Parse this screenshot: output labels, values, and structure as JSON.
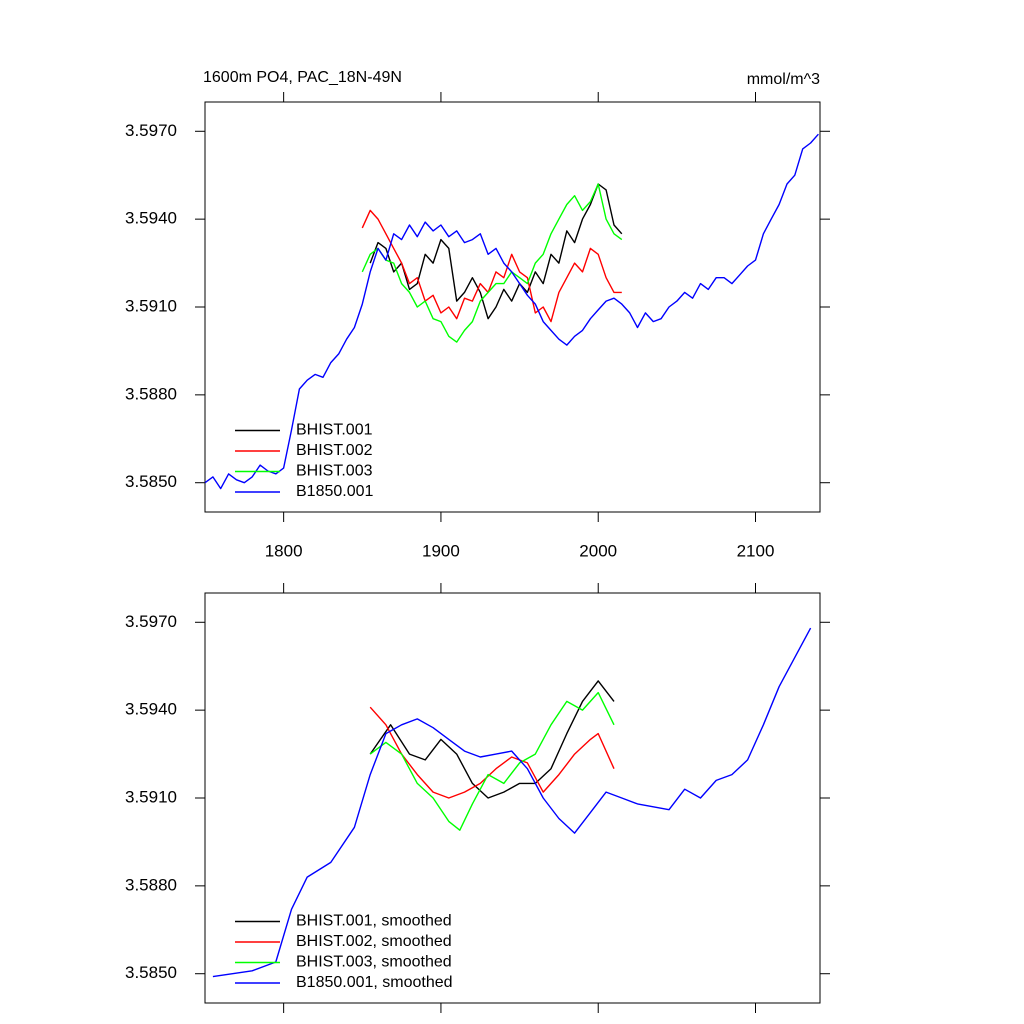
{
  "chart_data": [
    {
      "type": "line",
      "title": "1600m PO4, PAC_18N-49N",
      "units": "mmol/m^3",
      "xlim": [
        1750,
        2141
      ],
      "xticks": [
        1800,
        1900,
        2000,
        2100
      ],
      "ylim": [
        3.584,
        3.598
      ],
      "yticks": [
        {
          "value": 3.585,
          "label": "3.5850"
        },
        {
          "value": 3.588,
          "label": "3.5880"
        },
        {
          "value": 3.591,
          "label": "3.5910"
        },
        {
          "value": 3.594,
          "label": "3.5940"
        },
        {
          "value": 3.597,
          "label": "3.5970"
        }
      ],
      "legend": "lower left",
      "series": [
        {
          "name": "BHIST.001",
          "color": "#000000",
          "x": [
            1855,
            1860,
            1865,
            1870,
            1875,
            1880,
            1885,
            1890,
            1895,
            1900,
            1905,
            1910,
            1915,
            1920,
            1925,
            1930,
            1935,
            1940,
            1945,
            1950,
            1955,
            1960,
            1965,
            1970,
            1975,
            1980,
            1985,
            1990,
            1995,
            2000,
            2005,
            2010,
            2015
          ],
          "values": [
            3.5925,
            3.5932,
            3.593,
            3.5922,
            3.5925,
            3.5916,
            3.5918,
            3.5928,
            3.5925,
            3.5933,
            3.593,
            3.5912,
            3.5915,
            3.592,
            3.5915,
            3.5906,
            3.591,
            3.5916,
            3.5912,
            3.5918,
            3.5915,
            3.5922,
            3.5918,
            3.5928,
            3.5925,
            3.5936,
            3.5932,
            3.594,
            3.5945,
            3.5952,
            3.595,
            3.5938,
            3.5935
          ]
        },
        {
          "name": "BHIST.002",
          "color": "#ff0000",
          "x": [
            1850,
            1855,
            1860,
            1865,
            1870,
            1875,
            1880,
            1885,
            1890,
            1895,
            1900,
            1905,
            1910,
            1915,
            1920,
            1925,
            1930,
            1935,
            1940,
            1945,
            1950,
            1955,
            1960,
            1965,
            1970,
            1975,
            1980,
            1985,
            1990,
            1995,
            2000,
            2005,
            2010,
            2015
          ],
          "values": [
            3.5937,
            3.5943,
            3.594,
            3.5935,
            3.593,
            3.5925,
            3.5918,
            3.592,
            3.5912,
            3.5914,
            3.5908,
            3.591,
            3.5906,
            3.5913,
            3.5912,
            3.5918,
            3.5915,
            3.5922,
            3.592,
            3.5928,
            3.5922,
            3.592,
            3.5908,
            3.591,
            3.5905,
            3.5915,
            3.592,
            3.5925,
            3.5922,
            3.593,
            3.5928,
            3.592,
            3.5915,
            3.5915
          ]
        },
        {
          "name": "BHIST.003",
          "color": "#00ff00",
          "x": [
            1850,
            1855,
            1860,
            1865,
            1870,
            1875,
            1880,
            1885,
            1890,
            1895,
            1900,
            1905,
            1910,
            1915,
            1920,
            1925,
            1930,
            1935,
            1940,
            1945,
            1950,
            1955,
            1960,
            1965,
            1970,
            1975,
            1980,
            1985,
            1990,
            1995,
            2000,
            2005,
            2010,
            2015
          ],
          "values": [
            3.5922,
            3.5928,
            3.593,
            3.5926,
            3.5925,
            3.5918,
            3.5915,
            3.591,
            3.5912,
            3.5906,
            3.5905,
            3.59,
            3.5898,
            3.5902,
            3.5905,
            3.5912,
            3.5915,
            3.5918,
            3.5918,
            3.5922,
            3.592,
            3.5918,
            3.5925,
            3.5928,
            3.5935,
            3.594,
            3.5945,
            3.5948,
            3.5943,
            3.5946,
            3.5952,
            3.594,
            3.5935,
            3.5933
          ]
        },
        {
          "name": "B1850.001",
          "color": "#0000ff",
          "x": [
            1750,
            1755,
            1760,
            1765,
            1770,
            1775,
            1780,
            1785,
            1790,
            1795,
            1800,
            1805,
            1810,
            1815,
            1820,
            1825,
            1830,
            1835,
            1840,
            1845,
            1850,
            1855,
            1860,
            1865,
            1870,
            1875,
            1880,
            1885,
            1890,
            1895,
            1900,
            1905,
            1910,
            1915,
            1920,
            1925,
            1930,
            1935,
            1940,
            1945,
            1950,
            1955,
            1960,
            1965,
            1970,
            1975,
            1980,
            1985,
            1990,
            1995,
            2000,
            2005,
            2010,
            2015,
            2020,
            2025,
            2030,
            2035,
            2040,
            2045,
            2050,
            2055,
            2060,
            2065,
            2070,
            2075,
            2080,
            2085,
            2090,
            2095,
            2100,
            2105,
            2110,
            2115,
            2120,
            2125,
            2130,
            2135,
            2140
          ],
          "values": [
            3.585,
            3.5852,
            3.5848,
            3.5853,
            3.5851,
            3.585,
            3.5852,
            3.5856,
            3.5854,
            3.5853,
            3.5855,
            3.5868,
            3.5882,
            3.5885,
            3.5887,
            3.5886,
            3.5891,
            3.5894,
            3.5899,
            3.5903,
            3.5911,
            3.5922,
            3.593,
            3.5926,
            3.5935,
            3.5933,
            3.5938,
            3.5934,
            3.5939,
            3.5936,
            3.5938,
            3.5934,
            3.5936,
            3.5932,
            3.5933,
            3.5935,
            3.5928,
            3.593,
            3.5925,
            3.5922,
            3.5918,
            3.5914,
            3.5911,
            3.5905,
            3.5902,
            3.5899,
            3.5897,
            3.59,
            3.5902,
            3.5906,
            3.5909,
            3.5912,
            3.5913,
            3.5911,
            3.5908,
            3.5903,
            3.5908,
            3.5905,
            3.5906,
            3.591,
            3.5912,
            3.5915,
            3.5913,
            3.5918,
            3.5916,
            3.592,
            3.592,
            3.5918,
            3.5921,
            3.5924,
            3.5926,
            3.5935,
            3.594,
            3.5945,
            3.5952,
            3.5955,
            3.5964,
            3.5966,
            3.5969
          ]
        }
      ]
    },
    {
      "type": "line",
      "xlim": [
        1750,
        2141
      ],
      "xticks": [
        1800,
        1900,
        2000,
        2100
      ],
      "ylim": [
        3.584,
        3.598
      ],
      "yticks": [
        {
          "value": 3.585,
          "label": "3.5850"
        },
        {
          "value": 3.588,
          "label": "3.5880"
        },
        {
          "value": 3.591,
          "label": "3.5910"
        },
        {
          "value": 3.594,
          "label": "3.5940"
        },
        {
          "value": 3.597,
          "label": "3.5970"
        }
      ],
      "legend": "lower left",
      "series": [
        {
          "name": "BHIST.001, smoothed",
          "color": "#000000",
          "x": [
            1855,
            1868,
            1880,
            1890,
            1900,
            1910,
            1920,
            1930,
            1940,
            1950,
            1960,
            1970,
            1980,
            1990,
            2000,
            2010
          ],
          "values": [
            3.5925,
            3.5935,
            3.5925,
            3.5923,
            3.593,
            3.5925,
            3.5915,
            3.591,
            3.5912,
            3.5915,
            3.5915,
            3.592,
            3.5932,
            3.5943,
            3.595,
            3.5943
          ]
        },
        {
          "name": "BHIST.002, smoothed",
          "color": "#ff0000",
          "x": [
            1855,
            1865,
            1875,
            1885,
            1895,
            1905,
            1915,
            1925,
            1935,
            1945,
            1955,
            1965,
            1975,
            1985,
            1995,
            2000,
            2010
          ],
          "values": [
            3.5941,
            3.5935,
            3.5925,
            3.5918,
            3.5912,
            3.591,
            3.5912,
            3.5915,
            3.592,
            3.5924,
            3.5922,
            3.5912,
            3.5918,
            3.5925,
            3.593,
            3.5932,
            3.592
          ]
        },
        {
          "name": "BHIST.003, smoothed",
          "color": "#00ff00",
          "x": [
            1855,
            1865,
            1875,
            1885,
            1895,
            1905,
            1912,
            1920,
            1930,
            1940,
            1950,
            1960,
            1970,
            1980,
            1990,
            2000,
            2010
          ],
          "values": [
            3.5925,
            3.5929,
            3.5925,
            3.5915,
            3.591,
            3.5902,
            3.5899,
            3.5908,
            3.5918,
            3.5915,
            3.5922,
            3.5925,
            3.5935,
            3.5943,
            3.594,
            3.5946,
            3.5935
          ]
        },
        {
          "name": "B1850.001, smoothed",
          "color": "#0000ff",
          "x": [
            1755,
            1780,
            1795,
            1805,
            1815,
            1830,
            1845,
            1855,
            1865,
            1875,
            1885,
            1895,
            1905,
            1915,
            1925,
            1935,
            1945,
            1955,
            1965,
            1975,
            1985,
            1995,
            2005,
            2015,
            2025,
            2035,
            2045,
            2055,
            2065,
            2075,
            2085,
            2095,
            2105,
            2115,
            2125,
            2135
          ],
          "values": [
            3.5849,
            3.5851,
            3.5854,
            3.5872,
            3.5883,
            3.5888,
            3.59,
            3.5918,
            3.5932,
            3.5935,
            3.5937,
            3.5934,
            3.593,
            3.5926,
            3.5924,
            3.5925,
            3.5926,
            3.592,
            3.591,
            3.5903,
            3.5898,
            3.5905,
            3.5912,
            3.591,
            3.5908,
            3.5907,
            3.5906,
            3.5913,
            3.591,
            3.5916,
            3.5918,
            3.5923,
            3.5935,
            3.5948,
            3.5958,
            3.5968
          ]
        }
      ]
    }
  ]
}
